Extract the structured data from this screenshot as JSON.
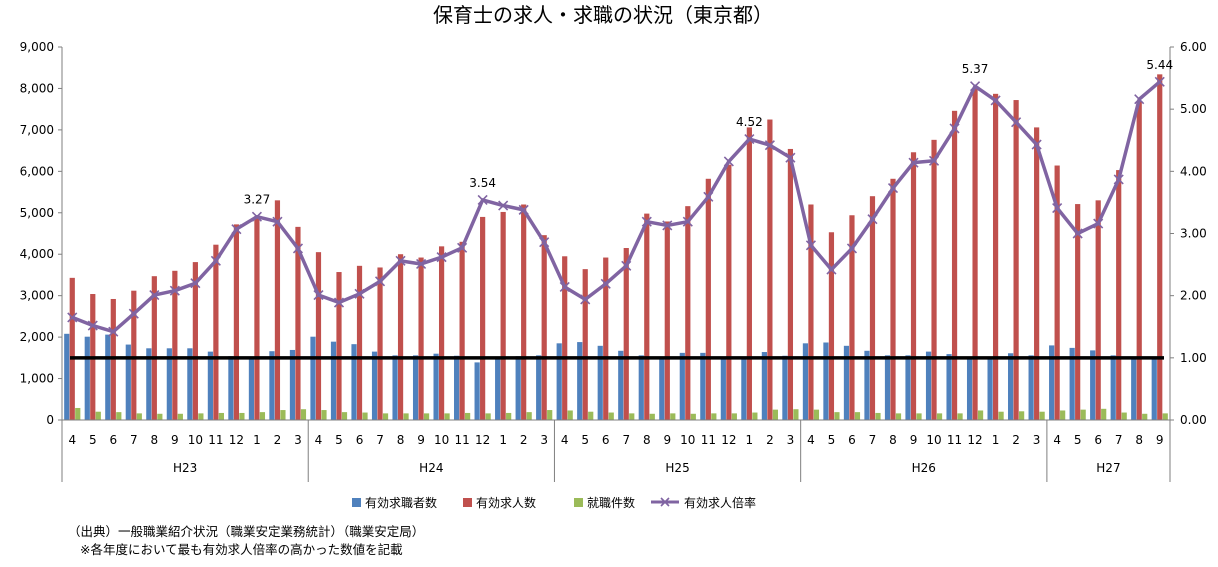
{
  "chart_data": {
    "type": "bar",
    "title": "保育士の求人・求職の状況（東京都）",
    "categories": [
      "4",
      "5",
      "6",
      "7",
      "8",
      "9",
      "10",
      "11",
      "12",
      "1",
      "2",
      "3",
      "4",
      "5",
      "6",
      "7",
      "8",
      "9",
      "10",
      "11",
      "12",
      "1",
      "2",
      "3",
      "4",
      "5",
      "6",
      "7",
      "8",
      "9",
      "10",
      "11",
      "12",
      "1",
      "2",
      "3",
      "4",
      "5",
      "6",
      "7",
      "8",
      "9",
      "10",
      "11",
      "12",
      "1",
      "2",
      "3",
      "4",
      "5",
      "6",
      "7",
      "8",
      "9"
    ],
    "fiscal_years": [
      {
        "label": "H23",
        "count": 12
      },
      {
        "label": "H24",
        "count": 12
      },
      {
        "label": "H25",
        "count": 12
      },
      {
        "label": "H26",
        "count": 12
      },
      {
        "label": "H27",
        "count": 6
      }
    ],
    "ylim": [
      0,
      9000
    ],
    "y_ticks": [
      "0",
      "1,000",
      "2,000",
      "3,000",
      "4,000",
      "5,000",
      "6,000",
      "7,000",
      "8,000",
      "9,000"
    ],
    "y2lim": [
      0,
      6
    ],
    "y2_ticks": [
      "0.00",
      "1.00",
      "2.00",
      "3.00",
      "4.00",
      "5.00",
      "6.00"
    ],
    "reference_line": 1.0,
    "series": [
      {
        "name": "有効求職者数",
        "type": "bar",
        "axis": "left",
        "color": "#4f81bd",
        "values": [
          2080,
          2010,
          2060,
          1820,
          1730,
          1730,
          1730,
          1650,
          1540,
          1530,
          1660,
          1690,
          2010,
          1890,
          1830,
          1650,
          1560,
          1560,
          1600,
          1550,
          1390,
          1530,
          1540,
          1560,
          1850,
          1880,
          1790,
          1670,
          1560,
          1530,
          1620,
          1620,
          1480,
          1530,
          1640,
          1550,
          1850,
          1870,
          1790,
          1670,
          1560,
          1560,
          1650,
          1590,
          1480,
          1530,
          1610,
          1560,
          1800,
          1740,
          1680,
          1560,
          1490,
          1490
        ]
      },
      {
        "name": "有効求人数",
        "type": "bar",
        "axis": "left",
        "color": "#c0504d",
        "values": [
          3430,
          3040,
          2920,
          3120,
          3470,
          3600,
          3810,
          4230,
          4720,
          4920,
          5300,
          4660,
          4050,
          3570,
          3720,
          3680,
          4000,
          3920,
          4190,
          4300,
          4900,
          5020,
          5200,
          4460,
          3950,
          3640,
          3920,
          4150,
          4980,
          4790,
          5160,
          5820,
          6160,
          7060,
          7250,
          6540,
          5200,
          4530,
          4940,
          5400,
          5820,
          6460,
          6760,
          7460,
          8000,
          7870,
          7720,
          7060,
          6140,
          5210,
          5300,
          6030,
          7690,
          8340
        ]
      },
      {
        "name": "就職件数",
        "type": "bar",
        "axis": "left",
        "color": "#9bbb59",
        "values": [
          290,
          200,
          190,
          160,
          150,
          150,
          160,
          170,
          170,
          190,
          240,
          260,
          240,
          190,
          180,
          160,
          160,
          160,
          160,
          170,
          160,
          170,
          190,
          240,
          230,
          200,
          180,
          160,
          150,
          160,
          150,
          160,
          160,
          180,
          250,
          260,
          250,
          190,
          190,
          170,
          160,
          160,
          160,
          160,
          230,
          200,
          210,
          200,
          230,
          250,
          270,
          180,
          150,
          160
        ]
      },
      {
        "name": "有効求人倍率",
        "type": "line",
        "axis": "right",
        "color": "#8064a2",
        "values": [
          1.65,
          1.52,
          1.42,
          1.71,
          2.01,
          2.08,
          2.2,
          2.56,
          3.07,
          3.27,
          3.19,
          2.76,
          2.01,
          1.89,
          2.03,
          2.23,
          2.56,
          2.51,
          2.62,
          2.77,
          3.54,
          3.45,
          3.38,
          2.86,
          2.14,
          1.94,
          2.19,
          2.48,
          3.19,
          3.13,
          3.19,
          3.59,
          4.16,
          4.52,
          4.42,
          4.22,
          2.81,
          2.42,
          2.76,
          3.23,
          3.73,
          4.14,
          4.17,
          4.69,
          5.37,
          5.14,
          4.79,
          4.43,
          3.41,
          3.0,
          3.16,
          3.87,
          5.16,
          5.44
        ]
      }
    ],
    "annotations": [
      {
        "index": 9,
        "label": "3.27"
      },
      {
        "index": 20,
        "label": "3.54"
      },
      {
        "index": 33,
        "label": "4.52"
      },
      {
        "index": 44,
        "label": "5.37"
      },
      {
        "index": 53,
        "label": "5.44"
      }
    ],
    "legend_position": "bottom",
    "grid": false
  },
  "notes": {
    "line1": "（出典）一般職業紹介状況（職業安定業務統計）（職業安定局）",
    "line2": "※各年度において最も有効求人倍率の高かった数値を記載"
  }
}
